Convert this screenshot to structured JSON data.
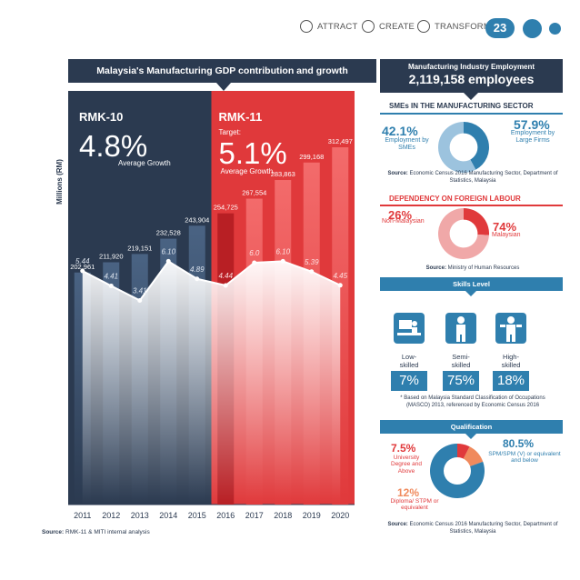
{
  "nav": {
    "items": [
      {
        "label": "ATTRACT",
        "icon": "antenna-icon"
      },
      {
        "label": "CREATE",
        "icon": "wrench-icon"
      },
      {
        "label": "TRANSFORM",
        "icon": "gear-icon"
      }
    ],
    "page_number": "23"
  },
  "chart_header": "Malaysia's Manufacturing GDP contribution and growth",
  "chart_source": {
    "label": "Source:",
    "text": " RMK-11 & MITI internal analysis"
  },
  "chart_data": {
    "type": "bar",
    "categories": [
      "2011",
      "2012",
      "2013",
      "2014",
      "2015",
      "2016",
      "2017",
      "2018",
      "2019",
      "2020"
    ],
    "values": [
      202961,
      211920,
      219151,
      232528,
      243904,
      254725,
      267554,
      283863,
      299168,
      312497
    ],
    "value_labels": [
      "202,961",
      "211,920",
      "219,151",
      "232,528",
      "243,904",
      "254,725",
      "267,554",
      "283,863",
      "299,168",
      "312,497"
    ],
    "growth": [
      5.44,
      4.41,
      3.41,
      6.1,
      4.89,
      4.44,
      6.0,
      6.1,
      5.39,
      4.45
    ],
    "growth_labels": [
      "5.44",
      "4.41",
      "3.41",
      "6.10",
      "4.89",
      "4.44",
      "6.0",
      "6.10",
      "5.39",
      "4.45"
    ],
    "ylabel": "Millions (RM)",
    "xlabel": "",
    "ylim": [
      0,
      330000
    ],
    "growth_lim": [
      0,
      10
    ],
    "legend": "none",
    "grid": false,
    "periods": [
      {
        "name": "RMK-10",
        "growth": "4.8%",
        "sub": "Average Growth",
        "target": "",
        "color": "#2b3a50"
      },
      {
        "name": "RMK-11",
        "growth": "5.1%",
        "sub": "Average Growth",
        "target": "Target:",
        "color": "#e0393b"
      }
    ]
  },
  "employment": {
    "header": "Manufacturing Industry Employment",
    "total": "2,119,158 employees"
  },
  "smes": {
    "title": "SMEs IN THE MANUFACTURING SECTOR",
    "left_pct": "42.1%",
    "left_label": "Employment by SMEs",
    "right_pct": "57.9%",
    "right_label": "Employment by Large Firms",
    "source_label": "Source:",
    "source": " Economic Census 2016 Manufacturing Sector, Department of Statistics, Malaysia",
    "share": [
      42.1,
      57.9
    ],
    "colors": [
      "#2f7fae",
      "#9cc3de"
    ]
  },
  "foreign": {
    "title": "DEPENDENCY ON FOREIGN LABOUR",
    "left_pct": "26%",
    "left_label": "Non-Malaysian",
    "right_pct": "74%",
    "right_label": "Malaysian",
    "source_label": "Source:",
    "source": " Ministry of Human Resources",
    "share": [
      26,
      74
    ],
    "colors": [
      "#e0393b",
      "#f0a8a8"
    ]
  },
  "skills": {
    "header": "Skills Level",
    "items": [
      {
        "label": "Low-\nskilled",
        "pct": "7%",
        "icon": "desk-worker-icon"
      },
      {
        "label": "Semi-\nskilled",
        "pct": "75%",
        "icon": "worker-icon"
      },
      {
        "label": "High-\nskilled",
        "pct": "18%",
        "icon": "engineer-icon"
      }
    ],
    "note": "* Based on Malaysia Standard Classification of Occupations (MASCO) 2013, referenced by Economic Census 2016"
  },
  "qualification": {
    "header": "Qualification",
    "items": [
      {
        "pct": "7.5%",
        "label": "University Degree and Above",
        "color": "#e0393b"
      },
      {
        "pct": "12%",
        "label": "Diploma/ STPM or equivalent",
        "color": "#f08a5d"
      },
      {
        "pct": "80.5%",
        "label": "SPM/SPM (V) or equivalent and below",
        "color": "#2f7fae"
      }
    ],
    "share": [
      7.5,
      12,
      80.5
    ],
    "source_label": "Source:",
    "source": " Economic Census 2016 Manufacturing Sector, Department of Statistics, Malaysia"
  }
}
